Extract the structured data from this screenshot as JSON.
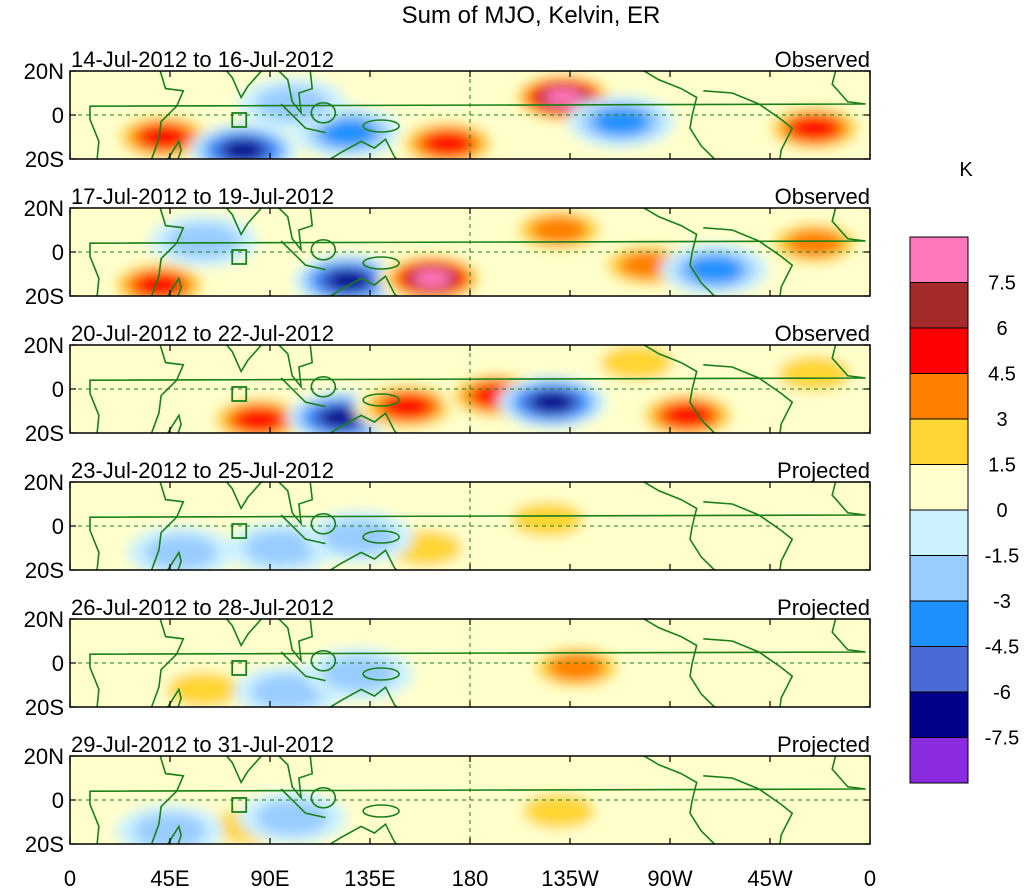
{
  "chart_data": {
    "type": "heatmap",
    "title": "Sum of MJO, Kelvin, ER",
    "units": "K",
    "x_ticks": [
      "0",
      "45E",
      "90E",
      "135E",
      "180",
      "135W",
      "90W",
      "45W",
      "0"
    ],
    "y_ticks": [
      "20N",
      "0",
      "20S"
    ],
    "xlim": [
      0,
      360
    ],
    "ylim": [
      -20,
      20
    ],
    "colorbar": {
      "levels": [
        "7.5",
        "6",
        "4.5",
        "3",
        "1.5",
        "0",
        "-1.5",
        "-3",
        "-4.5",
        "-6",
        "-7.5"
      ],
      "colors": [
        "#ff77bb",
        "#a52a2a",
        "#ff0000",
        "#ff7f00",
        "#ffd633",
        "#ffffcc",
        "#ccf2ff",
        "#99ccff",
        "#1e90ff",
        "#4a6bd6",
        "#00008b",
        "#8a2be2"
      ]
    },
    "panels": [
      {
        "period": "14-Jul-2012 to 16-Jul-2012",
        "status": "Observed",
        "anomalies": [
          {
            "lon": 42,
            "lat": -10,
            "value": 6
          },
          {
            "lon": 78,
            "lat": -16,
            "value": -7
          },
          {
            "lon": 125,
            "lat": -8,
            "value": -4
          },
          {
            "lon": 170,
            "lat": -13,
            "value": 5
          },
          {
            "lon": 222,
            "lat": 8,
            "value": 8
          },
          {
            "lon": 248,
            "lat": -3,
            "value": -4
          },
          {
            "lon": 335,
            "lat": -6,
            "value": 5
          },
          {
            "lon": 100,
            "lat": 5,
            "value": -2
          }
        ]
      },
      {
        "period": "17-Jul-2012 to 19-Jul-2012",
        "status": "Observed",
        "anomalies": [
          {
            "lon": 40,
            "lat": -15,
            "value": 5
          },
          {
            "lon": 125,
            "lat": -13,
            "value": -7.5
          },
          {
            "lon": 163,
            "lat": -12,
            "value": 8
          },
          {
            "lon": 220,
            "lat": 10,
            "value": 4
          },
          {
            "lon": 260,
            "lat": -6,
            "value": 4
          },
          {
            "lon": 290,
            "lat": -8,
            "value": -4
          },
          {
            "lon": 335,
            "lat": 4,
            "value": 4
          },
          {
            "lon": 60,
            "lat": 5,
            "value": -2
          }
        ]
      },
      {
        "period": "20-Jul-2012 to 22-Jul-2012",
        "status": "Observed",
        "anomalies": [
          {
            "lon": 85,
            "lat": -14,
            "value": 6
          },
          {
            "lon": 122,
            "lat": -13,
            "value": -7
          },
          {
            "lon": 152,
            "lat": -8,
            "value": 5
          },
          {
            "lon": 192,
            "lat": -3,
            "value": 5
          },
          {
            "lon": 217,
            "lat": -6,
            "value": -7
          },
          {
            "lon": 278,
            "lat": -12,
            "value": 5
          },
          {
            "lon": 335,
            "lat": 7,
            "value": 3
          },
          {
            "lon": 255,
            "lat": 12,
            "value": 2
          }
        ]
      },
      {
        "period": "23-Jul-2012 to 25-Jul-2012",
        "status": "Projected",
        "anomalies": [
          {
            "lon": 95,
            "lat": -10,
            "value": -3
          },
          {
            "lon": 160,
            "lat": -10,
            "value": 3
          },
          {
            "lon": 215,
            "lat": 3,
            "value": 2
          },
          {
            "lon": 130,
            "lat": -5,
            "value": -2
          },
          {
            "lon": 50,
            "lat": -12,
            "value": -2
          },
          {
            "lon": 300,
            "lat": -5,
            "value": 1.5
          }
        ]
      },
      {
        "period": "26-Jul-2012 to 28-Jul-2012",
        "status": "Projected",
        "anomalies": [
          {
            "lon": 228,
            "lat": -2,
            "value": 4
          },
          {
            "lon": 60,
            "lat": -12,
            "value": 2
          },
          {
            "lon": 98,
            "lat": -13,
            "value": -3
          },
          {
            "lon": 130,
            "lat": -5,
            "value": -2
          },
          {
            "lon": 300,
            "lat": 5,
            "value": 1.5
          }
        ]
      },
      {
        "period": "29-Jul-2012 to 31-Jul-2012",
        "status": "Projected",
        "anomalies": [
          {
            "lon": 80,
            "lat": -12,
            "value": 2
          },
          {
            "lon": 100,
            "lat": -8,
            "value": -2
          },
          {
            "lon": 220,
            "lat": -5,
            "value": 2
          },
          {
            "lon": 300,
            "lat": -5,
            "value": 1.5
          },
          {
            "lon": 45,
            "lat": -14,
            "value": -2
          }
        ]
      }
    ]
  }
}
